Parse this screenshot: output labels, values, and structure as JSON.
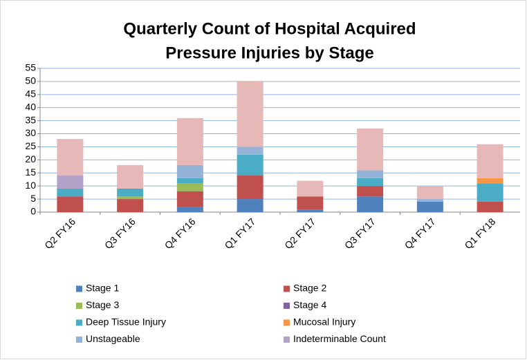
{
  "chart_data": {
    "type": "stacked_bar",
    "title": [
      "Quarterly Count of Hospital Acquired",
      "Pressure Injuries by Stage"
    ],
    "categories": [
      "Q2 FY16",
      "Q3 FY16",
      "Q4 FY16",
      "Q1 FY17",
      "Q2 FY17",
      "Q3 FY17",
      "Q4 FY17",
      "Q1 FY18"
    ],
    "series": [
      {
        "name": "Stage 1",
        "color": "#4f81bd",
        "values": [
          0,
          0,
          2,
          5,
          1,
          6,
          4,
          0
        ]
      },
      {
        "name": "Stage 2",
        "color": "#c0504d",
        "values": [
          6,
          5,
          6,
          9,
          5,
          4,
          0,
          4
        ]
      },
      {
        "name": "Stage 3",
        "color": "#9bbb59",
        "values": [
          0,
          1,
          3,
          0,
          0,
          0,
          0,
          0
        ]
      },
      {
        "name": "Stage 4",
        "color": "#8064a2",
        "values": [
          0,
          0,
          0,
          0,
          0,
          0,
          0,
          0
        ]
      },
      {
        "name": "Deep Tissue Injury",
        "color": "#4bacc6",
        "values": [
          3,
          3,
          2,
          8,
          0,
          3,
          0,
          7
        ]
      },
      {
        "name": "Mucosal Injury",
        "color": "#f79646",
        "values": [
          0,
          0,
          0,
          0,
          0,
          0,
          0,
          2
        ]
      },
      {
        "name": "Unstageable",
        "color": "#95b3d7",
        "values": [
          0,
          0,
          5,
          3,
          0,
          3,
          1,
          0
        ]
      },
      {
        "name": "Indeterminable Count",
        "color": "#b3a2c7",
        "values": [
          5,
          0,
          0,
          0,
          0,
          0,
          0,
          0
        ]
      },
      {
        "color": "#e6b9b8",
        "values": [
          14,
          9,
          18,
          25,
          6,
          16,
          5,
          13
        ]
      }
    ],
    "ylim": [
      0,
      55
    ],
    "yticks": [
      0,
      5,
      10,
      15,
      20,
      25,
      30,
      35,
      40,
      45,
      50,
      55
    ],
    "grid": true
  }
}
